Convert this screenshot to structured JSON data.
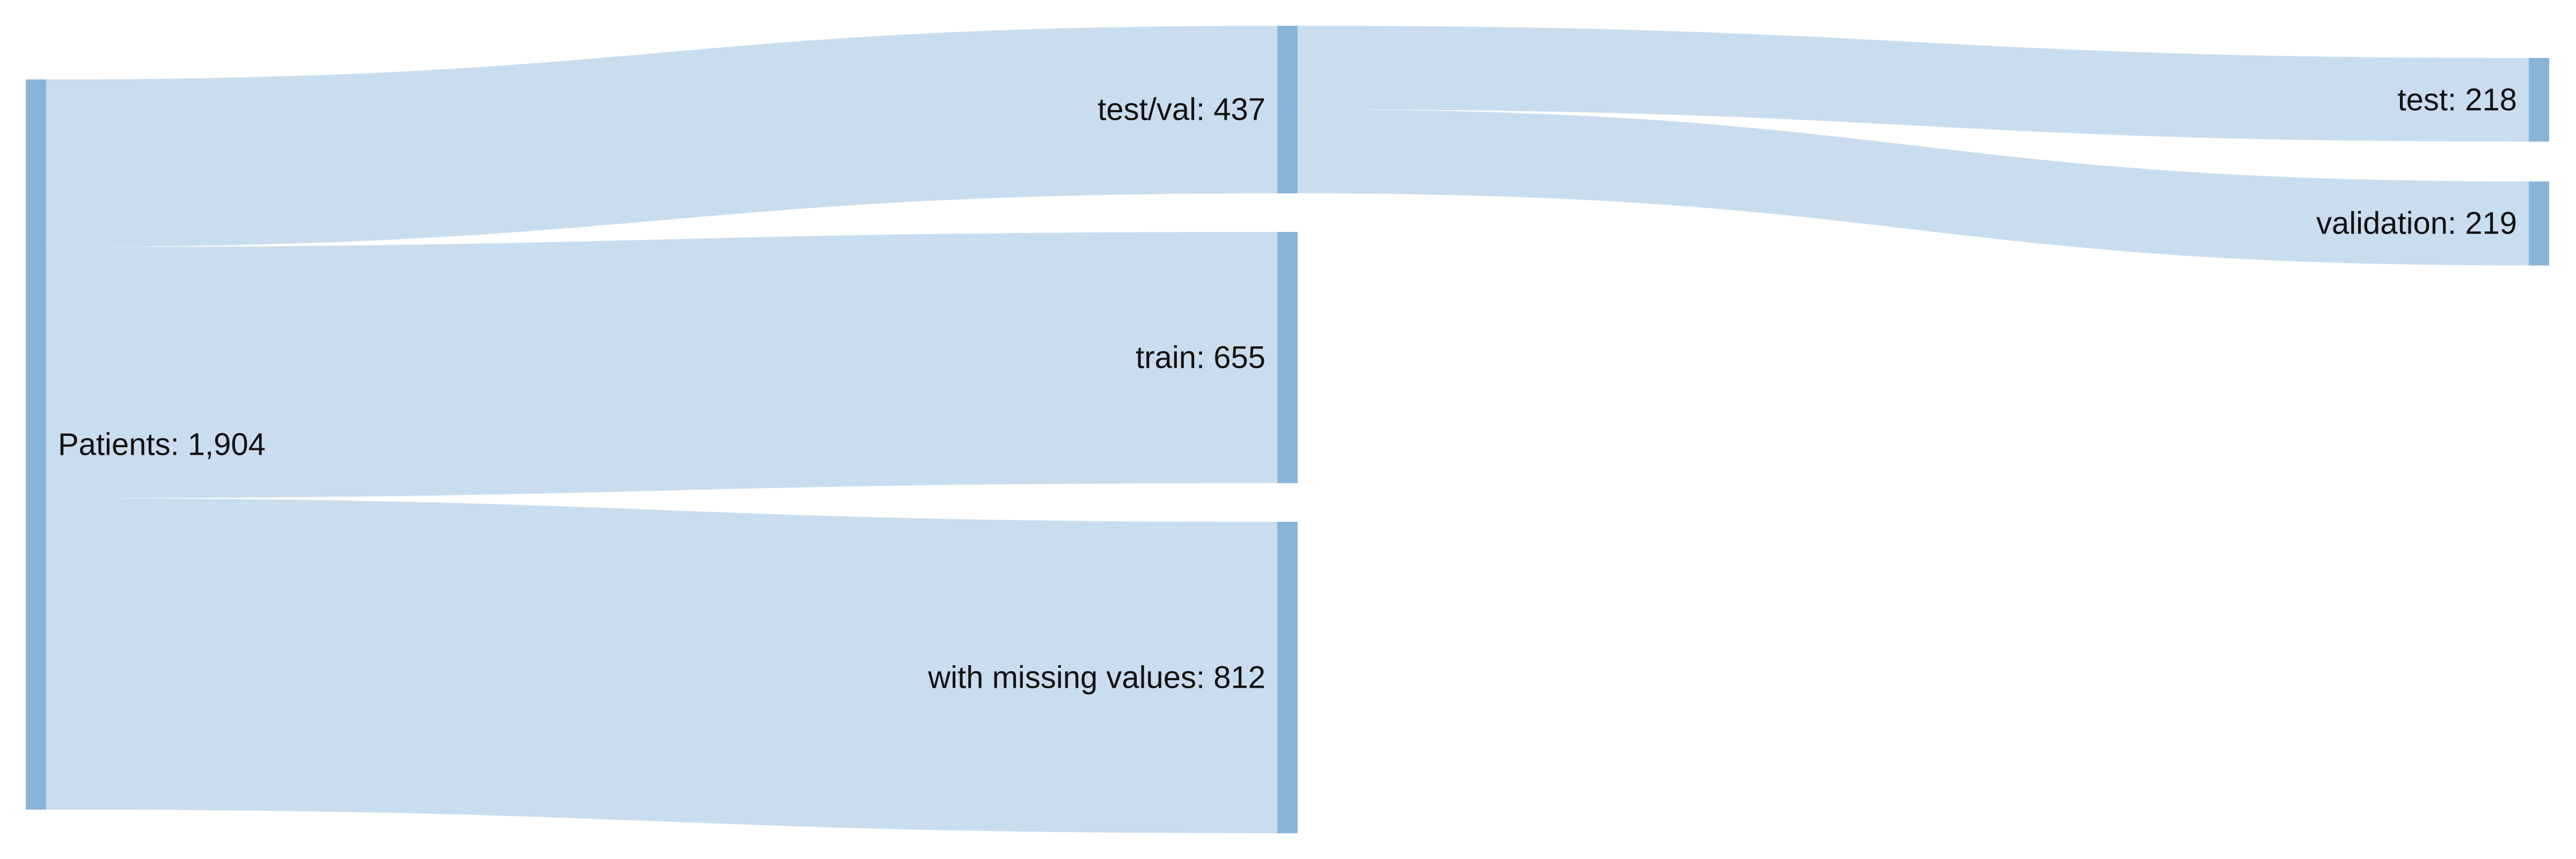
{
  "colors": {
    "node": "#88b4d9",
    "link": "#c9ddee",
    "label": "#111111",
    "background": "#ffffff"
  },
  "chart_data": {
    "type": "sankey",
    "unit": "patients",
    "nodes": [
      {
        "id": "patients",
        "label": "Patients: 1,904",
        "name": "Patients",
        "value": 1904,
        "column": 0
      },
      {
        "id": "testval",
        "label": "test/val: 437",
        "name": "test/val",
        "value": 437,
        "column": 1
      },
      {
        "id": "train",
        "label": "train: 655",
        "name": "train",
        "value": 655,
        "column": 1
      },
      {
        "id": "missing",
        "label": "with missing values: 812",
        "name": "with missing values",
        "value": 812,
        "column": 1
      },
      {
        "id": "test",
        "label": "test: 218",
        "name": "test",
        "value": 218,
        "column": 2
      },
      {
        "id": "validation",
        "label": "validation: 219",
        "name": "validation",
        "value": 219,
        "column": 2
      }
    ],
    "links": [
      {
        "source": "patients",
        "target": "testval",
        "value": 437
      },
      {
        "source": "patients",
        "target": "train",
        "value": 655
      },
      {
        "source": "patients",
        "target": "missing",
        "value": 812
      },
      {
        "source": "testval",
        "target": "test",
        "value": 218
      },
      {
        "source": "testval",
        "target": "validation",
        "value": 219
      }
    ]
  }
}
